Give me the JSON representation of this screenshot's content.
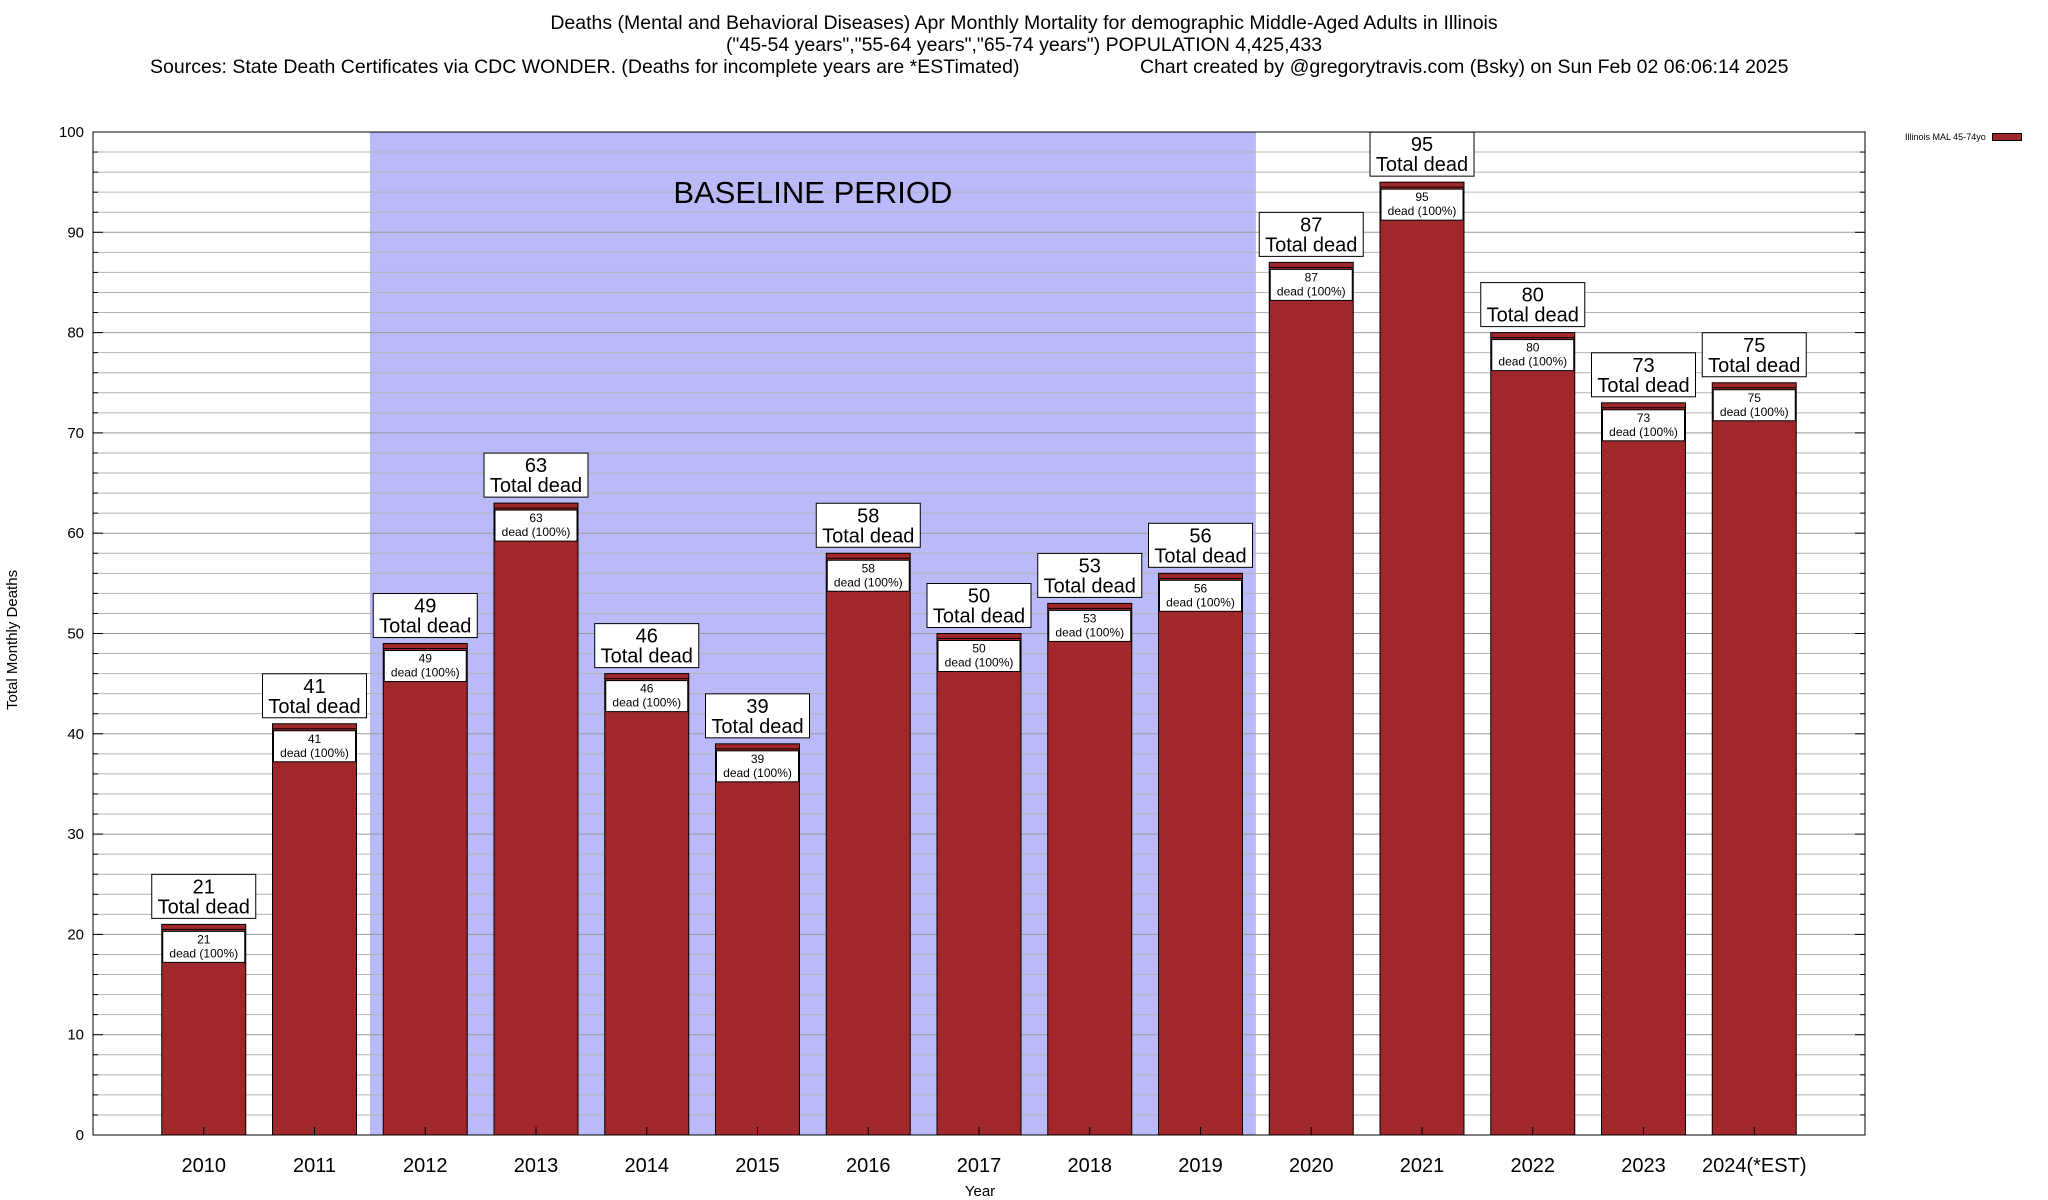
{
  "header": {
    "title_line1": "Deaths (Mental and Behavioral Diseases) Apr Monthly Mortality for demographic Middle-Aged Adults in Illinois",
    "title_line2": "(\"45-54 years\",\"55-64 years\",\"65-74 years\") POPULATION 4,425,433",
    "source": "Sources: State Death Certificates via CDC WONDER. (Deaths for incomplete years are *ESTimated)",
    "credit": "Chart created by @gregorytravis.com (Bsky) on Sun Feb 02 06:06:14 2025"
  },
  "colors": {
    "bar": "#a0282a",
    "baseline_band": "#babaf8",
    "grid": "#b4b4b4"
  },
  "chart_data": {
    "type": "bar",
    "xlabel": "Year",
    "ylabel": "Total Monthly Deaths",
    "ylim": [
      0,
      100
    ],
    "yticks": [
      0,
      10,
      20,
      30,
      40,
      50,
      60,
      70,
      80,
      90,
      100
    ],
    "grid": true,
    "legend_position": "top-right",
    "categories": [
      "2010",
      "2011",
      "2012",
      "2013",
      "2014",
      "2015",
      "2016",
      "2017",
      "2018",
      "2019",
      "2020",
      "2021",
      "2022",
      "2023",
      "2024(*EST)"
    ],
    "series": [
      {
        "name": "Illinois MAL 45-74yo",
        "values": [
          21,
          41,
          49,
          63,
          46,
          39,
          58,
          50,
          53,
          56,
          87,
          95,
          80,
          73,
          75
        ]
      }
    ],
    "top_label_suffix": "Total dead",
    "inner_label_suffix": "dead (100%)",
    "annotation": {
      "text": "BASELINE PERIOD",
      "from_category": "2012",
      "to_category": "2019"
    }
  }
}
